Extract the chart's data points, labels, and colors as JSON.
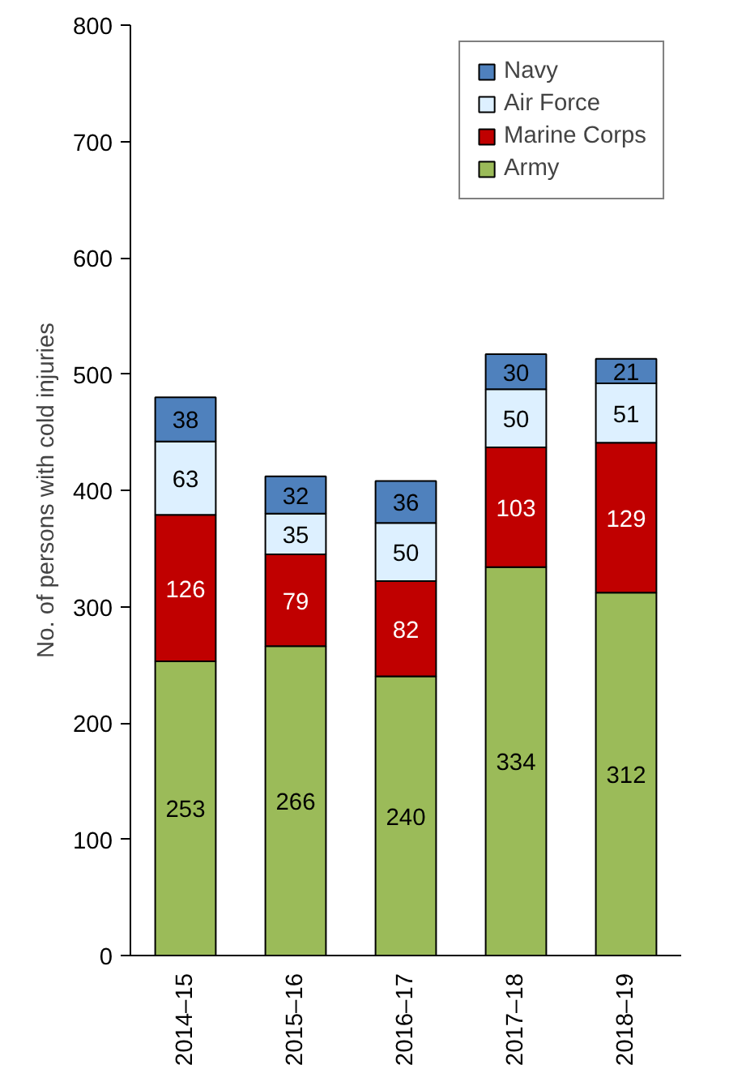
{
  "chart_data": {
    "type": "bar",
    "stacked": true,
    "ylabel": "No. of persons with cold injuries",
    "categories": [
      "2014–15",
      "2015–16",
      "2016–17",
      "2017–18",
      "2018–19"
    ],
    "series": [
      {
        "name": "Army",
        "color": "#9bbb59",
        "values": [
          253,
          266,
          240,
          334,
          312
        ]
      },
      {
        "name": "Marine Corps",
        "color": "#c00000",
        "values": [
          126,
          79,
          82,
          103,
          129
        ]
      },
      {
        "name": "Air Force",
        "color": "#ddf0ff",
        "values": [
          63,
          35,
          50,
          50,
          51
        ]
      },
      {
        "name": "Navy",
        "color": "#4f81bd",
        "values": [
          38,
          32,
          36,
          30,
          21
        ]
      }
    ],
    "ylim": [
      0,
      800
    ],
    "yticks": [
      0,
      100,
      200,
      300,
      400,
      500,
      600,
      700,
      800
    ],
    "data_labels": true,
    "grid": false,
    "legend": "top right"
  }
}
